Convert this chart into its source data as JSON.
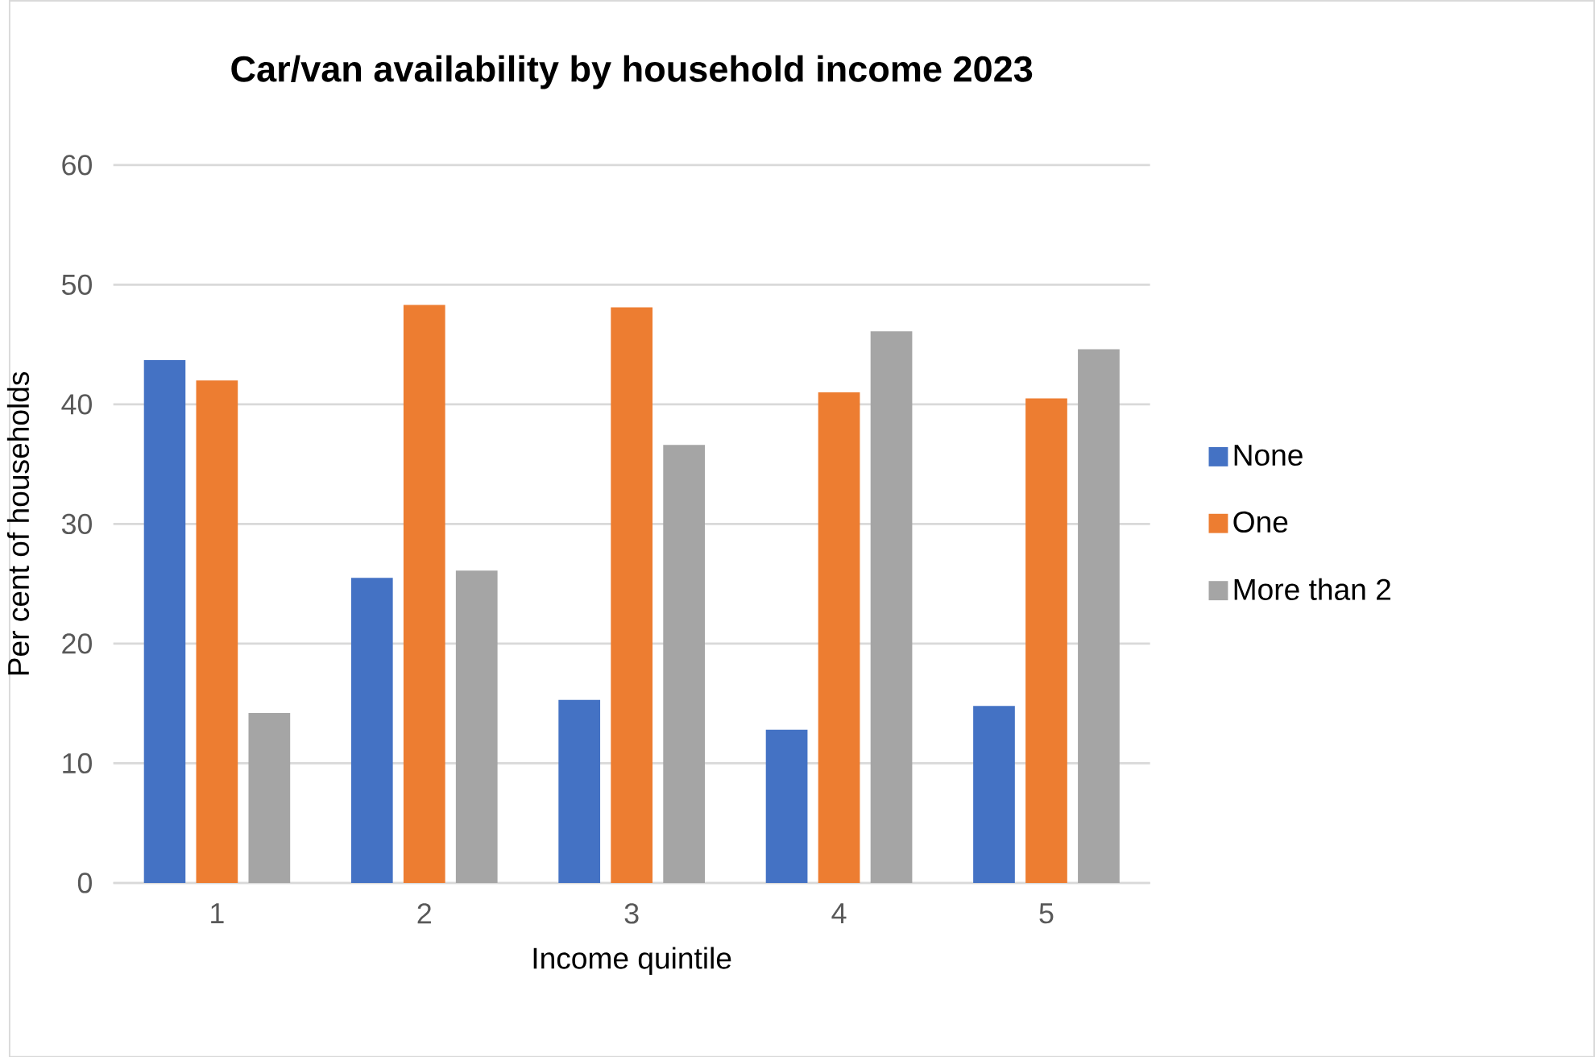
{
  "chart_data": {
    "type": "bar",
    "title": "Car/van availability by household income 2023",
    "xlabel": "Income quintile",
    "ylabel": "Per cent of households",
    "categories": [
      "1",
      "2",
      "3",
      "4",
      "5"
    ],
    "series": [
      {
        "name": "None",
        "color": "#4472c4",
        "values": [
          43.7,
          25.5,
          15.3,
          12.8,
          14.8
        ]
      },
      {
        "name": "One",
        "color": "#ed7d31",
        "values": [
          42.0,
          48.3,
          48.1,
          41.0,
          40.5
        ]
      },
      {
        "name": "More than 2",
        "color": "#a5a5a5",
        "values": [
          14.2,
          26.1,
          36.6,
          46.1,
          44.6
        ]
      }
    ],
    "ylim": [
      0,
      60
    ],
    "yticks": [
      0,
      10,
      20,
      30,
      40,
      50,
      60
    ],
    "grid": "y",
    "legend": "right"
  }
}
